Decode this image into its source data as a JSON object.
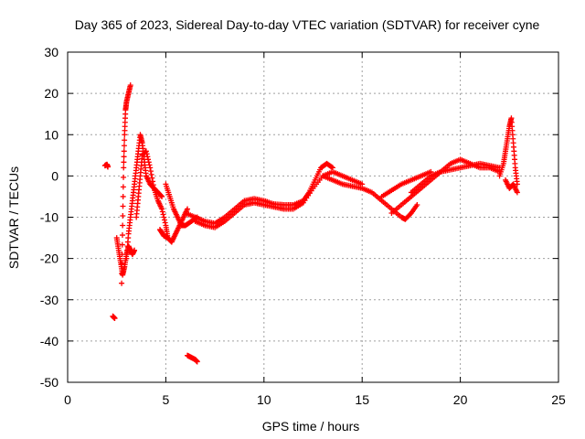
{
  "chart_data": {
    "type": "scatter",
    "title": "Day 365 of 2023, Sidereal Day-to-day VTEC variation (SDTVAR) for receiver cyne",
    "xlabel": "GPS time / hours",
    "ylabel": "SDTVAR / TECUs",
    "xlim": [
      0,
      25
    ],
    "ylim": [
      -50,
      30
    ],
    "xticks": [
      "0",
      "5",
      "10",
      "15",
      "20",
      "25"
    ],
    "yticks": [
      "30",
      "20",
      "10",
      "0",
      "-10",
      "-20",
      "-30",
      "-40",
      "-50"
    ],
    "grid": true,
    "marker": "+",
    "color": "#ff0000",
    "series": [
      {
        "name": "s1",
        "x": [
          1.9,
          2.0,
          2.05
        ],
        "y": [
          2.5,
          2.8,
          2.2
        ]
      },
      {
        "name": "s2",
        "x": [
          2.3,
          2.4
        ],
        "y": [
          -34,
          -34.5
        ]
      },
      {
        "name": "s3",
        "x": [
          2.5,
          2.6,
          2.7,
          2.8,
          2.9,
          3.0,
          3.1,
          3.2,
          3.3,
          3.4
        ],
        "y": [
          -15,
          -18,
          -21,
          -24,
          -22,
          -19,
          -17,
          -18,
          -19,
          -18
        ]
      },
      {
        "name": "s4",
        "x": [
          2.75,
          2.8,
          2.85,
          2.9,
          2.95,
          3.0,
          3.1,
          3.2
        ],
        "y": [
          -26,
          -12,
          2,
          10,
          16,
          18,
          20,
          22
        ]
      },
      {
        "name": "s5",
        "x": [
          3.0,
          3.1,
          3.2,
          3.3,
          3.4,
          3.5,
          3.6,
          3.7,
          3.8,
          3.9,
          4.0,
          4.2,
          4.4,
          4.6,
          4.8
        ],
        "y": [
          -20,
          -14,
          -10,
          -6,
          -2,
          2,
          6,
          10,
          8,
          4,
          0,
          -2,
          -3,
          -4,
          -5
        ]
      },
      {
        "name": "s6",
        "x": [
          3.5,
          3.6,
          3.7,
          3.8,
          4.0,
          4.2,
          4.4,
          4.6,
          4.8,
          5.0,
          5.1
        ],
        "y": [
          -10,
          -5,
          0,
          5,
          6,
          2,
          -3,
          -6,
          -8,
          -12,
          -15
        ]
      },
      {
        "name": "s7",
        "x": [
          4.7,
          4.9,
          5.1,
          5.3,
          5.5,
          5.7,
          5.9,
          6.1
        ],
        "y": [
          -13,
          -14.5,
          -15,
          -16,
          -14,
          -12,
          -10,
          -8
        ]
      },
      {
        "name": "s8",
        "x": [
          5.0,
          5.2,
          5.4,
          5.6,
          5.8,
          6.0,
          6.3,
          6.6
        ],
        "y": [
          -2,
          -5,
          -8,
          -10,
          -12,
          -12,
          -11,
          -10
        ]
      },
      {
        "name": "s9",
        "x": [
          6.1,
          6.3,
          6.5,
          6.6
        ],
        "y": [
          -43.5,
          -44,
          -44.5,
          -45
        ]
      },
      {
        "name": "s10",
        "x": [
          6.0,
          6.5,
          7.0,
          7.5,
          8.0,
          8.5,
          9.0,
          9.5,
          10.0,
          10.5,
          11.0,
          11.5,
          12.0,
          12.3,
          12.6,
          12.9,
          13.2,
          13.5
        ],
        "y": [
          -9,
          -10,
          -11,
          -11.5,
          -10,
          -8,
          -6,
          -5.5,
          -6,
          -6.8,
          -7,
          -7,
          -6,
          -4,
          -1,
          2,
          3,
          2
        ]
      },
      {
        "name": "s11",
        "x": [
          6.5,
          7.0,
          7.5,
          8.0,
          8.5,
          9.0,
          9.5,
          10.0,
          10.5,
          11.0,
          11.5,
          12.0,
          12.5,
          13.0,
          13.5,
          14.0,
          14.5,
          15.0
        ],
        "y": [
          -11,
          -12,
          -12.5,
          -11,
          -9,
          -7,
          -6.5,
          -7,
          -7.5,
          -8,
          -8,
          -6.5,
          -3,
          0,
          1,
          0,
          -1,
          -2
        ]
      },
      {
        "name": "s12",
        "x": [
          13.0,
          13.5,
          14.0,
          14.5,
          15.0,
          15.5,
          16.0,
          16.5,
          17.0,
          17.2,
          17.5,
          17.8
        ],
        "y": [
          0,
          -1,
          -2,
          -2.5,
          -3,
          -4,
          -6,
          -8,
          -10,
          -10.5,
          -9,
          -7
        ]
      },
      {
        "name": "s13",
        "x": [
          16.5,
          17.0,
          17.5,
          18.0,
          18.5,
          19.0,
          19.5,
          20.0,
          20.5,
          21.0,
          21.5,
          22.0
        ],
        "y": [
          -9,
          -7,
          -5,
          -3,
          -1,
          1,
          3,
          4,
          3,
          2,
          2,
          1
        ]
      },
      {
        "name": "s14",
        "x": [
          16.0,
          16.5,
          17.0,
          17.5,
          18.0,
          18.5
        ],
        "y": [
          -5,
          -3.5,
          -2,
          -1,
          0,
          1
        ]
      },
      {
        "name": "s15",
        "x": [
          17.5,
          18.0,
          18.5,
          19.0,
          19.5,
          20.0,
          20.5,
          21.0,
          21.5,
          22.0
        ],
        "y": [
          -4,
          -2,
          0,
          1,
          1.5,
          2,
          2.5,
          3,
          2.5,
          2
        ]
      },
      {
        "name": "s16",
        "x": [
          22.0,
          22.2,
          22.3,
          22.4,
          22.5,
          22.6,
          22.7,
          22.8,
          22.9
        ],
        "y": [
          0,
          3,
          6,
          9,
          12,
          14,
          8,
          2,
          -2
        ]
      },
      {
        "name": "s17",
        "x": [
          22.3,
          22.5,
          22.7,
          22.9
        ],
        "y": [
          -1,
          -3,
          -2,
          -4
        ]
      }
    ]
  }
}
